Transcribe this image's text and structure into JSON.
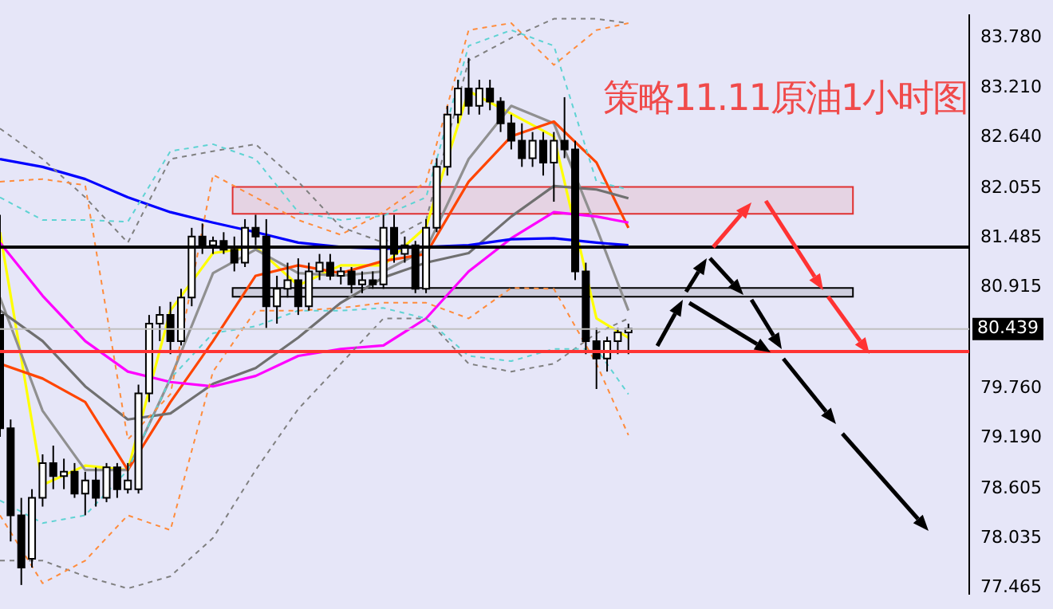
{
  "chart_data": {
    "type": "candlestick",
    "title": "策略11.11原油1小时图",
    "categories": [
      null,
      null,
      null,
      null,
      null,
      null,
      null,
      null,
      null,
      null,
      null,
      null,
      null,
      null,
      null,
      null,
      null,
      null,
      null,
      null,
      null,
      null,
      null,
      null,
      null,
      null,
      null,
      null,
      null,
      null,
      null,
      null,
      null,
      null,
      null,
      null,
      null,
      null,
      null,
      null,
      null,
      null,
      null,
      null,
      null,
      null,
      null,
      null,
      null,
      null,
      null,
      null,
      null,
      null,
      null,
      null,
      null,
      null,
      null,
      null,
      null,
      null,
      null,
      null,
      null,
      null,
      null,
      null,
      null,
      null,
      null,
      null,
      null,
      null,
      null,
      null,
      null,
      null,
      null,
      null,
      null,
      null,
      null,
      null,
      null,
      null,
      null,
      null,
      null,
      null,
      null,
      null
    ],
    "ohlc": [
      [
        80.6,
        81.75,
        79.2,
        79.3
      ],
      [
        79.3,
        79.4,
        78.0,
        78.3
      ],
      [
        78.3,
        78.5,
        77.5,
        77.7
      ],
      [
        77.8,
        78.6,
        77.7,
        78.5
      ],
      [
        78.5,
        79.0,
        78.4,
        78.9
      ],
      [
        78.9,
        79.1,
        78.6,
        78.75
      ],
      [
        78.75,
        78.95,
        78.6,
        78.8
      ],
      [
        78.8,
        78.9,
        78.5,
        78.55
      ],
      [
        78.55,
        78.8,
        78.3,
        78.7
      ],
      [
        78.7,
        78.85,
        78.4,
        78.5
      ],
      [
        78.5,
        78.9,
        78.45,
        78.85
      ],
      [
        78.85,
        78.9,
        78.5,
        78.6
      ],
      [
        78.6,
        78.9,
        78.55,
        78.7
      ],
      [
        78.6,
        79.8,
        78.55,
        79.7
      ],
      [
        79.7,
        80.6,
        79.6,
        80.5
      ],
      [
        80.5,
        80.7,
        80.3,
        80.6
      ],
      [
        80.6,
        80.75,
        80.15,
        80.3
      ],
      [
        80.3,
        80.9,
        80.25,
        80.8
      ],
      [
        80.8,
        81.6,
        80.7,
        81.5
      ],
      [
        81.5,
        81.65,
        81.3,
        81.4
      ],
      [
        81.4,
        81.5,
        81.3,
        81.45
      ],
      [
        81.45,
        81.55,
        81.3,
        81.35
      ],
      [
        81.35,
        81.5,
        81.1,
        81.2
      ],
      [
        81.2,
        81.7,
        81.15,
        81.6
      ],
      [
        81.6,
        81.75,
        81.4,
        81.5
      ],
      [
        81.5,
        81.7,
        80.45,
        80.7
      ],
      [
        80.7,
        81.05,
        80.5,
        80.9
      ],
      [
        80.9,
        81.2,
        80.8,
        81.0
      ],
      [
        81.0,
        81.25,
        80.6,
        80.7
      ],
      [
        80.7,
        81.2,
        80.65,
        81.1
      ],
      [
        81.1,
        81.3,
        81.0,
        81.2
      ],
      [
        81.2,
        81.3,
        81.0,
        81.05
      ],
      [
        81.05,
        81.15,
        80.95,
        81.1
      ],
      [
        81.1,
        81.15,
        80.85,
        80.95
      ],
      [
        80.95,
        81.1,
        80.85,
        81.0
      ],
      [
        81.0,
        81.1,
        80.9,
        80.95
      ],
      [
        80.95,
        81.75,
        80.9,
        81.6
      ],
      [
        81.6,
        81.75,
        81.2,
        81.3
      ],
      [
        81.3,
        81.5,
        81.2,
        81.4
      ],
      [
        81.4,
        81.45,
        80.85,
        80.9
      ],
      [
        80.9,
        81.7,
        80.85,
        81.6
      ],
      [
        81.6,
        82.4,
        81.55,
        82.3
      ],
      [
        82.3,
        83.0,
        82.2,
        82.9
      ],
      [
        82.9,
        83.3,
        82.8,
        83.2
      ],
      [
        83.2,
        83.55,
        82.9,
        83.0
      ],
      [
        83.0,
        83.3,
        82.9,
        83.2
      ],
      [
        83.2,
        83.3,
        82.95,
        83.05
      ],
      [
        83.05,
        83.1,
        82.7,
        82.8
      ],
      [
        82.8,
        82.9,
        82.5,
        82.6
      ],
      [
        82.6,
        82.8,
        82.3,
        82.4
      ],
      [
        82.4,
        82.7,
        82.3,
        82.6
      ],
      [
        82.6,
        82.7,
        82.2,
        82.35
      ],
      [
        82.35,
        82.7,
        81.9,
        82.6
      ],
      [
        82.6,
        83.1,
        82.4,
        82.5
      ],
      [
        82.5,
        82.6,
        81.0,
        81.1
      ],
      [
        81.1,
        81.2,
        80.15,
        80.3
      ],
      [
        80.3,
        80.45,
        79.75,
        80.1
      ],
      [
        80.1,
        80.35,
        79.95,
        80.3
      ],
      [
        80.3,
        80.45,
        80.15,
        80.4
      ],
      [
        80.4,
        80.5,
        80.15,
        80.44
      ],
      null,
      null,
      null,
      null,
      null,
      null,
      null,
      null,
      null,
      null,
      null,
      null,
      null,
      null,
      null,
      null,
      null,
      null,
      null,
      null,
      null,
      null,
      null,
      null,
      null,
      null,
      null,
      null,
      null,
      null,
      null,
      null
    ],
    "series": [
      {
        "type": "line",
        "color": "#ff8c3c",
        "line_style": "dashed",
        "values": [
          82.13,
          null,
          null,
          null,
          82.16,
          null,
          null,
          null,
          82.09,
          null,
          null,
          null,
          79.17,
          null,
          null,
          null,
          79.69,
          null,
          null,
          null,
          82.21,
          null,
          null,
          null,
          81.95,
          null,
          null,
          null,
          81.69,
          null,
          null,
          null,
          81.52,
          null,
          null,
          null,
          81.78,
          null,
          null,
          null,
          82.13,
          null,
          null,
          null,
          83.87,
          null,
          null,
          null,
          83.95,
          null,
          null,
          null,
          83.47,
          null,
          null,
          null,
          83.87,
          null,
          null,
          83.95,
          null,
          null,
          null,
          null,
          null,
          null,
          null,
          null,
          null,
          null,
          null,
          null,
          null,
          null,
          null,
          null,
          null,
          null,
          null,
          null,
          null,
          null,
          null,
          null,
          null,
          null,
          null,
          null,
          null,
          null,
          null,
          null
        ]
      },
      {
        "type": "line",
        "color": "#ff8c3c",
        "line_style": "dashed",
        "values": [
          78.3,
          null,
          null,
          null,
          77.52,
          null,
          null,
          null,
          77.78,
          null,
          null,
          null,
          78.3,
          null,
          null,
          null,
          78.13,
          null,
          null,
          null,
          79.95,
          null,
          null,
          null,
          80.65,
          null,
          null,
          null,
          80.65,
          null,
          null,
          null,
          80.68,
          null,
          null,
          null,
          80.74,
          null,
          null,
          null,
          80.74,
          null,
          null,
          null,
          80.56,
          null,
          null,
          null,
          80.91,
          null,
          null,
          null,
          80.9,
          null,
          null,
          null,
          80.04,
          null,
          null,
          79.22,
          null,
          null,
          null,
          null,
          null,
          null,
          null,
          null,
          null,
          null,
          null,
          null,
          null,
          null,
          null,
          null,
          null,
          null,
          null,
          null,
          null,
          null,
          null,
          null,
          null,
          null,
          null,
          null,
          null,
          null,
          null,
          null
        ]
      },
      {
        "type": "line",
        "color": "#5fd3d3",
        "line_style": "dashed",
        "values": [
          81.95,
          null,
          null,
          null,
          81.69,
          null,
          null,
          null,
          81.69,
          null,
          null,
          null,
          81.67,
          null,
          null,
          null,
          82.48,
          null,
          null,
          null,
          82.56,
          null,
          null,
          null,
          82.39,
          null,
          null,
          null,
          81.78,
          null,
          null,
          null,
          81.69,
          null,
          null,
          null,
          81.74,
          null,
          null,
          null,
          81.95,
          null,
          null,
          null,
          83.69,
          null,
          null,
          null,
          83.87,
          null,
          null,
          null,
          83.69,
          null,
          null,
          null,
          82.13,
          null,
          null,
          82.04,
          null,
          null,
          null,
          null,
          null,
          null,
          null,
          null,
          null,
          null,
          null,
          null,
          null,
          null,
          null,
          null,
          null,
          null,
          null,
          null,
          null,
          null,
          null,
          null,
          null,
          null,
          null,
          null,
          null,
          null,
          null,
          null
        ]
      },
      {
        "type": "line",
        "color": "#5fd3d3",
        "line_style": "dashed",
        "values": [
          78.47,
          null,
          null,
          null,
          78.21,
          null,
          null,
          null,
          78.3,
          null,
          null,
          null,
          78.82,
          null,
          null,
          null,
          79.87,
          null,
          null,
          null,
          80.39,
          null,
          null,
          null,
          80.47,
          null,
          null,
          null,
          80.65,
          null,
          null,
          null,
          80.65,
          null,
          null,
          null,
          80.68,
          null,
          null,
          null,
          80.56,
          null,
          null,
          null,
          80.13,
          null,
          null,
          null,
          80.07,
          null,
          null,
          null,
          80.21,
          null,
          null,
          null,
          80.21,
          null,
          null,
          79.69,
          null,
          null,
          null,
          null,
          null,
          null,
          null,
          null,
          null,
          null,
          null,
          null,
          null,
          null,
          null,
          null,
          null,
          null,
          null,
          null,
          null,
          null,
          null,
          null,
          null,
          null,
          null,
          null,
          null,
          null,
          null,
          null
        ]
      },
      {
        "type": "line",
        "color": "#808080",
        "line_style": "dashed",
        "values": [
          82.74,
          null,
          null,
          null,
          82.39,
          null,
          null,
          null,
          81.95,
          null,
          null,
          null,
          81.43,
          null,
          null,
          null,
          82.39,
          null,
          null,
          null,
          82.48,
          null,
          null,
          null,
          82.56,
          null,
          null,
          null,
          82.13,
          null,
          null,
          null,
          81.61,
          null,
          null,
          null,
          81.43,
          null,
          null,
          null,
          81.69,
          null,
          null,
          null,
          83.52,
          null,
          null,
          null,
          83.78,
          null,
          null,
          null,
          84.0,
          null,
          null,
          null,
          84.0,
          null,
          null,
          83.95,
          null,
          null,
          null,
          null,
          null,
          null,
          null,
          null,
          null,
          null,
          null,
          null,
          null,
          null,
          null,
          null,
          null,
          null,
          null,
          null,
          null,
          null,
          null,
          null,
          null,
          null,
          null,
          null,
          null,
          null,
          null,
          null
        ]
      },
      {
        "type": "line",
        "color": "#808080",
        "line_style": "dashed",
        "values": [
          77.78,
          null,
          null,
          null,
          77.78,
          null,
          null,
          null,
          77.6,
          null,
          null,
          null,
          77.46,
          null,
          null,
          null,
          77.6,
          null,
          null,
          null,
          78.04,
          null,
          null,
          null,
          78.82,
          null,
          null,
          null,
          79.52,
          null,
          null,
          null,
          80.04,
          null,
          null,
          null,
          80.56,
          null,
          null,
          null,
          80.56,
          null,
          null,
          null,
          80.04,
          null,
          null,
          null,
          79.95,
          null,
          null,
          null,
          80.04,
          null,
          null,
          null,
          80.39,
          null,
          null,
          80.56,
          null,
          null,
          null,
          null,
          null,
          null,
          null,
          null,
          null,
          null,
          null,
          null,
          null,
          null,
          null,
          null,
          null,
          null,
          null,
          null,
          null,
          null,
          null,
          null,
          null,
          null,
          null,
          null,
          null,
          null,
          null,
          null
        ]
      },
      {
        "type": "line",
        "color": "#0000ff",
        "values": [
          82.39,
          null,
          null,
          null,
          82.3,
          null,
          null,
          null,
          82.16,
          null,
          null,
          null,
          81.95,
          null,
          null,
          null,
          81.78,
          null,
          null,
          null,
          81.66,
          null,
          null,
          null,
          81.55,
          null,
          null,
          null,
          81.43,
          null,
          null,
          null,
          81.38,
          null,
          null,
          null,
          81.36,
          null,
          null,
          null,
          null,
          null,
          null,
          null,
          81.4,
          null,
          null,
          null,
          81.47,
          null,
          null,
          null,
          81.48,
          null,
          null,
          null,
          81.43,
          null,
          null,
          81.4,
          null,
          null,
          null,
          null,
          null,
          null,
          null,
          null,
          null,
          null,
          null,
          null,
          null,
          null,
          null,
          null,
          null,
          null,
          null,
          null,
          null,
          null,
          null,
          null,
          null,
          null,
          null,
          null,
          null,
          null,
          null,
          null
        ]
      },
      {
        "type": "line",
        "color": "#ff00ff",
        "values": [
          81.43,
          null,
          null,
          null,
          80.82,
          null,
          null,
          null,
          80.3,
          null,
          null,
          null,
          79.95,
          null,
          null,
          null,
          79.83,
          null,
          null,
          null,
          79.78,
          null,
          null,
          null,
          79.9,
          null,
          null,
          null,
          80.13,
          null,
          null,
          null,
          80.21,
          null,
          null,
          null,
          80.25,
          null,
          null,
          null,
          80.56,
          null,
          null,
          null,
          81.1,
          null,
          null,
          null,
          81.48,
          null,
          null,
          null,
          81.78,
          null,
          null,
          null,
          81.73,
          null,
          null,
          81.66,
          null,
          null,
          null,
          null,
          null,
          null,
          null,
          null,
          null,
          null,
          null,
          null,
          null,
          null,
          null,
          null,
          null,
          null,
          null,
          null,
          null,
          null,
          null,
          null,
          null,
          null,
          null,
          null,
          null,
          null,
          null,
          null
        ]
      },
      {
        "type": "line",
        "color": "#707070",
        "values": [
          80.65,
          null,
          null,
          null,
          80.3,
          null,
          null,
          null,
          79.78,
          null,
          null,
          null,
          79.4,
          null,
          null,
          null,
          79.47,
          null,
          null,
          null,
          79.81,
          null,
          null,
          null,
          79.99,
          null,
          null,
          null,
          80.34,
          null,
          null,
          null,
          80.74,
          null,
          null,
          null,
          81.03,
          null,
          null,
          null,
          81.2,
          null,
          null,
          null,
          81.31,
          null,
          null,
          null,
          81.73,
          null,
          null,
          null,
          82.08,
          null,
          null,
          null,
          82.04,
          null,
          null,
          81.94,
          null,
          null,
          null,
          null,
          null,
          null,
          null,
          null,
          null,
          null,
          null,
          null,
          null,
          null,
          null,
          null,
          null,
          null,
          null,
          null,
          null,
          null,
          null,
          null,
          null,
          null,
          null,
          null,
          null,
          null,
          null,
          null
        ]
      },
      {
        "type": "line",
        "color": "#ff4500",
        "values": [
          80.04,
          null,
          null,
          null,
          79.87,
          null,
          null,
          null,
          79.6,
          null,
          null,
          null,
          78.82,
          null,
          null,
          null,
          79.6,
          null,
          null,
          null,
          80.3,
          null,
          null,
          null,
          81.05,
          null,
          null,
          null,
          81.17,
          null,
          null,
          null,
          81.08,
          null,
          null,
          null,
          81.22,
          null,
          null,
          null,
          81.3,
          null,
          null,
          null,
          82.13,
          null,
          null,
          null,
          82.65,
          null,
          null,
          null,
          82.82,
          null,
          null,
          null,
          82.35,
          null,
          null,
          81.6,
          null,
          null,
          null,
          null,
          null,
          null,
          null,
          null,
          null,
          null,
          null,
          null,
          null,
          null,
          null,
          null,
          null,
          null,
          null,
          null,
          null,
          null,
          null,
          null,
          null,
          null,
          null,
          null,
          null,
          null,
          null,
          null
        ]
      },
      {
        "type": "line",
        "color": "#909090",
        "values": [
          80.8,
          null,
          null,
          null,
          79.5,
          null,
          null,
          null,
          78.82,
          null,
          null,
          null,
          78.82,
          null,
          null,
          null,
          79.87,
          null,
          null,
          null,
          81.08,
          null,
          null,
          null,
          81.35,
          null,
          null,
          null,
          81.08,
          null,
          null,
          null,
          81.05,
          null,
          null,
          null,
          81.1,
          null,
          null,
          null,
          81.35,
          null,
          null,
          null,
          82.39,
          null,
          null,
          null,
          83.0,
          null,
          null,
          null,
          82.8,
          null,
          null,
          null,
          81.6,
          null,
          null,
          80.65,
          null,
          null,
          null,
          null,
          null,
          null,
          null,
          null,
          null,
          null,
          null,
          null,
          null,
          null,
          null,
          null,
          null,
          null,
          null,
          null,
          null,
          null,
          null,
          null,
          null,
          null,
          null,
          null,
          null,
          null,
          null,
          null
        ]
      },
      {
        "type": "line",
        "color": "#ffff00",
        "values": [
          81.55,
          null,
          null,
          null,
          78.65,
          null,
          null,
          null,
          78.87,
          null,
          null,
          null,
          78.82,
          null,
          null,
          null,
          80.65,
          null,
          null,
          null,
          81.31,
          null,
          null,
          null,
          81.38,
          null,
          null,
          null,
          80.94,
          null,
          null,
          null,
          81.17,
          null,
          null,
          null,
          81.17,
          null,
          null,
          null,
          81.61,
          null,
          null,
          null,
          83.17,
          null,
          null,
          null,
          82.91,
          null,
          null,
          null,
          82.65,
          null,
          null,
          null,
          80.56,
          null,
          null,
          80.34,
          null,
          null,
          null,
          null,
          null,
          null,
          null,
          null,
          null,
          null,
          null,
          null,
          null,
          null,
          null,
          null,
          null,
          null,
          null,
          null,
          null,
          null,
          null,
          null,
          null,
          null,
          null,
          null,
          null,
          null,
          null,
          null
        ]
      }
    ],
    "ylim": [
      77.4,
      84.04
    ],
    "yticks": [
      {
        "value": 77.465,
        "label": "77.465"
      },
      {
        "value": 78.035,
        "label": "78.035"
      },
      {
        "value": 78.605,
        "label": "78.605"
      },
      {
        "value": 79.19,
        "label": "79.190"
      },
      {
        "value": 79.76,
        "label": "79.760"
      },
      {
        "value": 80.915,
        "label": "80.915"
      },
      {
        "value": 81.485,
        "label": "81.485"
      },
      {
        "value": 82.055,
        "label": "82.055"
      },
      {
        "value": 82.64,
        "label": "82.640"
      },
      {
        "value": 83.21,
        "label": "83.210"
      },
      {
        "value": 83.78,
        "label": "83.780"
      }
    ],
    "ref_lines": [
      {
        "axis": "y",
        "value": 80.18,
        "color": "#ff3333"
      },
      {
        "axis": "y",
        "value": 81.38,
        "color": "#000000"
      },
      {
        "axis": "y",
        "value": 80.439,
        "label": "80.439",
        "color": "#c0c0c0"
      }
    ],
    "bands": [
      {
        "axis": "y",
        "from": 81.76,
        "to": 82.07,
        "color": "#e03030"
      },
      {
        "axis": "y",
        "from": 80.81,
        "to": 80.91,
        "color": "#000000"
      }
    ],
    "grid": false,
    "legend": false,
    "marker": "none",
    "tick_labels": "y"
  }
}
